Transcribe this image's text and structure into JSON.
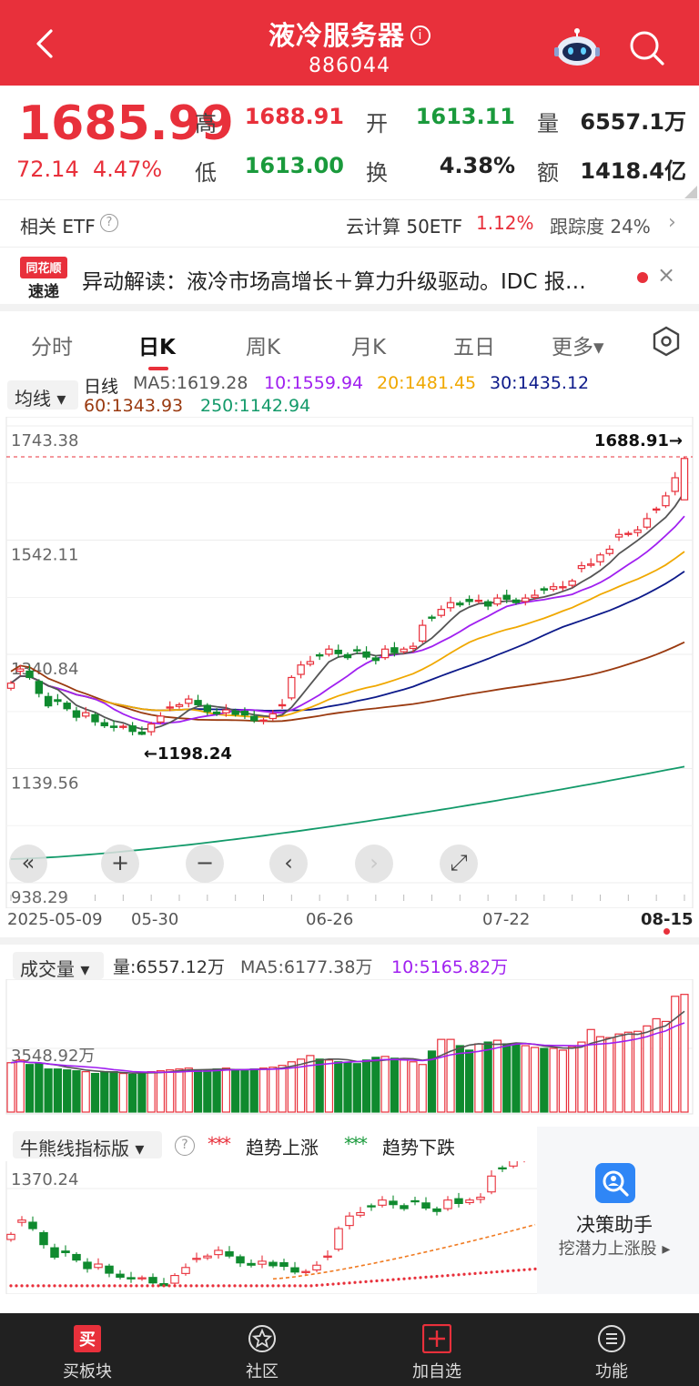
{
  "header": {
    "title": "液冷服务器",
    "info_glyph": "i",
    "code": "886044"
  },
  "quote": {
    "price": "1685.99",
    "change": "72.14",
    "change_pct": "4.47%",
    "high_label": "高",
    "high": "1688.91",
    "open_label": "开",
    "open": "1613.11",
    "volume_label": "量",
    "volume": "6557.1万",
    "low_label": "低",
    "low": "1613.00",
    "turnover_label": "换",
    "turnover": "4.38%",
    "amount_label": "额",
    "amount": "1418.4亿"
  },
  "etf": {
    "label": "相关 ETF",
    "help_glyph": "?",
    "name": "云计算 50ETF",
    "pct": "1.12%",
    "track_text": "跟踪度 24%",
    "chevron": "›"
  },
  "news": {
    "logo_top": "同花顺",
    "logo_bottom": "速递",
    "text": "异动解读：液冷市场高增长＋算力升级驱动。IDC 报…",
    "close_glyph": "×"
  },
  "tabs": [
    {
      "label": "分时"
    },
    {
      "label": "日K"
    },
    {
      "label": "周K"
    },
    {
      "label": "月K"
    },
    {
      "label": "五日"
    },
    {
      "label": "更多▾"
    }
  ],
  "active_tab": "日K",
  "kline": {
    "ma_selector": "均线 ▾",
    "legend": {
      "daily": "日线",
      "ma5": "MA5:1619.28",
      "ma10": "10:1559.94",
      "ma20": "20:1481.45",
      "ma30": "30:1435.12",
      "ma60": "60:1343.93",
      "ma250": "250:1142.94"
    },
    "y_labels": [
      "1743.38",
      "1542.11",
      "1340.84",
      "1139.56",
      "938.29"
    ],
    "max_marker": "1688.91→",
    "min_marker": "←1198.24",
    "dates": [
      "2025-05-09",
      "05-30",
      "06-26",
      "07-22",
      "08-15"
    ],
    "controls": [
      "«",
      "+",
      "−",
      "‹",
      "›",
      "⤢"
    ],
    "colors": {
      "up": "#e8303b",
      "down": "#0f8a2e",
      "ma5": "#555555",
      "ma10": "#a020f0",
      "ma20": "#f0a800",
      "ma30": "#0d1a8a",
      "ma60": "#9a3a10",
      "ma250": "#139a6a"
    }
  },
  "volume": {
    "selector": "成交量 ▾",
    "vol_text": "量:6557.12万",
    "ma5_text": "MA5:6177.38万",
    "ma10_text": "10:5165.82万",
    "y_label": "3548.92万"
  },
  "bullbear": {
    "selector": "牛熊线指标版 ▾",
    "help_glyph": "?",
    "up_mark": "***",
    "up_label": "趋势上涨",
    "down_mark": "***",
    "down_label": "趋势下跌",
    "y_label": "1370.24"
  },
  "assistant": {
    "title": "决策助手",
    "subtitle": "挖潜力上涨股 ▸"
  },
  "bottom_nav": [
    {
      "label": "买板块",
      "icon": "buy-sector-icon"
    },
    {
      "label": "社区",
      "icon": "community-icon"
    },
    {
      "label": "加自选",
      "icon": "add-watchlist-icon"
    },
    {
      "label": "功能",
      "icon": "menu-icon"
    }
  ],
  "chart_data": {
    "type": "candlestick",
    "title": "",
    "x_labels": [
      "2025-05-09",
      "05-30",
      "06-26",
      "07-22",
      "08-15"
    ],
    "ylim": [
      938.29,
      1743.38
    ],
    "y_ticks": [
      1743.38,
      1542.11,
      1340.84,
      1139.56,
      938.29
    ],
    "last": {
      "high": 1688.91,
      "open": 1613.11,
      "low": 1613.0,
      "close": 1685.99
    },
    "period_high": 1688.91,
    "period_low": 1198.24,
    "ma_last": {
      "MA5": 1619.28,
      "MA10": 1559.94,
      "MA20": 1481.45,
      "MA30": 1435.12,
      "MA60": 1343.93,
      "MA250": 1142.94
    },
    "closes": [
      1290,
      1315,
      1300,
      1272,
      1250,
      1258,
      1245,
      1230,
      1238,
      1222,
      1215,
      1212,
      1214,
      1205,
      1200,
      1218,
      1232,
      1248,
      1252,
      1262,
      1252,
      1240,
      1236,
      1243,
      1235,
      1234,
      1224,
      1225,
      1236,
      1252,
      1300,
      1322,
      1328,
      1338,
      1350,
      1342,
      1335,
      1348,
      1336,
      1330,
      1350,
      1344,
      1350,
      1355,
      1392,
      1406,
      1420,
      1432,
      1428,
      1434,
      1436,
      1426,
      1440,
      1438,
      1432,
      1440,
      1445,
      1454,
      1460,
      1460,
      1470,
      1497,
      1500,
      1516,
      1526,
      1552,
      1554,
      1560,
      1580,
      1597,
      1620,
      1652,
      1686
    ],
    "volumes_wan": [
      2750,
      2900,
      2650,
      2700,
      2400,
      2400,
      2350,
      2300,
      2250,
      2150,
      2200,
      2250,
      2150,
      2100,
      2200,
      2250,
      2300,
      2350,
      2400,
      2450,
      2300,
      2350,
      2400,
      2450,
      2350,
      2300,
      2400,
      2450,
      2500,
      2600,
      2800,
      2950,
      3150,
      2950,
      2900,
      2800,
      2750,
      2700,
      2900,
      3050,
      3100,
      3000,
      2900,
      2800,
      2650,
      3400,
      4050,
      4050,
      3700,
      3450,
      3800,
      3900,
      4000,
      3800,
      3750,
      3700,
      3600,
      3550,
      3550,
      3450,
      3650,
      3900,
      4600,
      4200,
      4150,
      4350,
      4450,
      4500,
      4800,
      5200,
      5050,
      6450,
      6557
    ]
  }
}
